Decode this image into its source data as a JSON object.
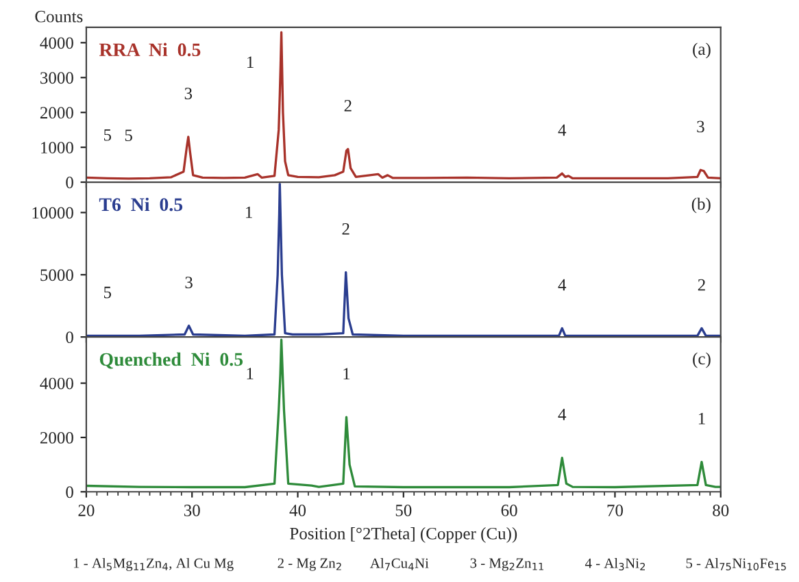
{
  "chart_data": [
    {
      "type": "line",
      "ylabel": "Counts",
      "xlim": [
        20,
        80
      ],
      "xticks": [
        20,
        30,
        40,
        50,
        60,
        70,
        80
      ],
      "ylim": [
        0,
        4440
      ],
      "yticks": [
        0,
        1000,
        2000,
        3000,
        4000
      ],
      "tick_labels": "y",
      "series": [
        {
          "name": "RRA  Ni  0.5",
          "color": "#a8322a",
          "x": [
            20,
            22,
            24,
            26,
            28,
            29.2,
            29.5,
            29.65,
            29.8,
            30.1,
            31,
            33,
            35,
            36.2,
            36.6,
            37.8,
            38.2,
            38.3,
            38.38,
            38.45,
            38.6,
            38.8,
            39.1,
            40,
            42,
            43.5,
            44.3,
            44.6,
            44.75,
            45,
            45.5,
            47.6,
            48,
            48.5,
            49,
            52,
            56,
            60,
            64.5,
            65,
            65.3,
            65.6,
            66,
            70,
            75,
            77.8,
            78.1,
            78.4,
            78.8,
            80
          ],
          "values": [
            130,
            110,
            100,
            110,
            140,
            300,
            1000,
            1300,
            900,
            200,
            130,
            120,
            130,
            230,
            130,
            180,
            1500,
            2500,
            3400,
            4300,
            2000,
            600,
            200,
            150,
            140,
            200,
            300,
            900,
            950,
            400,
            150,
            230,
            130,
            200,
            120,
            120,
            130,
            110,
            130,
            250,
            150,
            180,
            110,
            110,
            110,
            150,
            350,
            320,
            130,
            110
          ]
        }
      ],
      "annotations": [
        "(a)",
        {
          "text": "5",
          "x": 22,
          "y": 110
        },
        {
          "text": "5",
          "x": 24,
          "y": 100
        },
        {
          "text": "3",
          "x": 29.65,
          "y": 1300
        },
        {
          "text": "1",
          "x": 38.38,
          "y": 3400
        },
        {
          "text": "2",
          "x": 44.75,
          "y": 950
        },
        {
          "text": "4",
          "x": 65,
          "y": 250
        },
        {
          "text": "3",
          "x": 78.1,
          "y": 350
        }
      ]
    },
    {
      "type": "line",
      "xlim": [
        20,
        80
      ],
      "xticks": [
        20,
        30,
        40,
        50,
        60,
        70,
        80
      ],
      "ylim": [
        0,
        12440
      ],
      "yticks": [
        0,
        5000,
        10000
      ],
      "tick_labels": "y",
      "series": [
        {
          "name": "T6  Ni  0.5",
          "color": "#2a3d8f",
          "x": [
            20,
            22,
            25,
            29.3,
            29.7,
            30.1,
            35,
            37.8,
            38.1,
            38.25,
            38.3,
            38.5,
            38.8,
            39.5,
            42,
            44.3,
            44.55,
            44.8,
            45.2,
            50,
            60,
            64.7,
            65,
            65.3,
            70,
            77.8,
            78.2,
            78.6,
            80
          ],
          "values": [
            100,
            100,
            100,
            200,
            900,
            200,
            100,
            200,
            5000,
            9900,
            12300,
            5000,
            300,
            200,
            200,
            300,
            5200,
            1500,
            200,
            100,
            100,
            100,
            700,
            100,
            100,
            100,
            700,
            100,
            100
          ]
        }
      ],
      "annotations": [
        "(b)",
        {
          "text": "5",
          "x": 22,
          "y": 100
        },
        {
          "text": "3",
          "x": 29.7,
          "y": 900
        },
        {
          "text": "1",
          "x": 38.25,
          "y": 9900
        },
        {
          "text": "2",
          "x": 44.55,
          "y": 5200
        },
        {
          "text": "4",
          "x": 65,
          "y": 700
        },
        {
          "text": "2",
          "x": 78.2,
          "y": 700
        }
      ]
    },
    {
      "type": "line",
      "xlabel": "Position [°2Theta] (Copper (Cu))",
      "xlim": [
        20,
        80
      ],
      "xticks": [
        20,
        30,
        40,
        50,
        60,
        70,
        80
      ],
      "ylim": [
        0,
        5700
      ],
      "yticks": [
        0,
        2000,
        4000
      ],
      "series": [
        {
          "name": "Quenched  Ni  0.5",
          "color": "#2e8b3a",
          "x": [
            20,
            25,
            30,
            35,
            37.8,
            38.2,
            38.35,
            38.45,
            38.7,
            39.1,
            41.3,
            42,
            44.3,
            44.6,
            44.9,
            45.4,
            50,
            55,
            60,
            64.6,
            65,
            65.4,
            66,
            70,
            77.8,
            78.2,
            78.6,
            79.5,
            80
          ],
          "values": [
            220,
            180,
            170,
            170,
            300,
            3000,
            4300,
            5600,
            3000,
            300,
            230,
            180,
            300,
            2750,
            1000,
            200,
            170,
            170,
            170,
            250,
            1250,
            300,
            180,
            170,
            250,
            1100,
            250,
            180,
            180
          ]
        }
      ],
      "annotations": [
        "(c)",
        {
          "text": "1",
          "x": 38.35,
          "y": 4300
        },
        {
          "text": "1",
          "x": 44.6,
          "y": 2750
        },
        {
          "text": "4",
          "x": 65,
          "y": 1250
        },
        {
          "text": "1",
          "x": 78.2,
          "y": 1100
        },
        "1 - Al$_{5}$Mg$_{11}$Zn$_{4}$, Al Cu Mg",
        "2 - Mg Zn$_{2}$",
        "Al$_{7}$Cu$_{4}$Ni",
        "3 - Mg$_{2}$Zn$_{11}$",
        "4 - Al$_{3}$Ni$_{2}$",
        "5 - Al$_{75}$Ni$_{10}$Fe$_{15}$"
      ]
    }
  ]
}
